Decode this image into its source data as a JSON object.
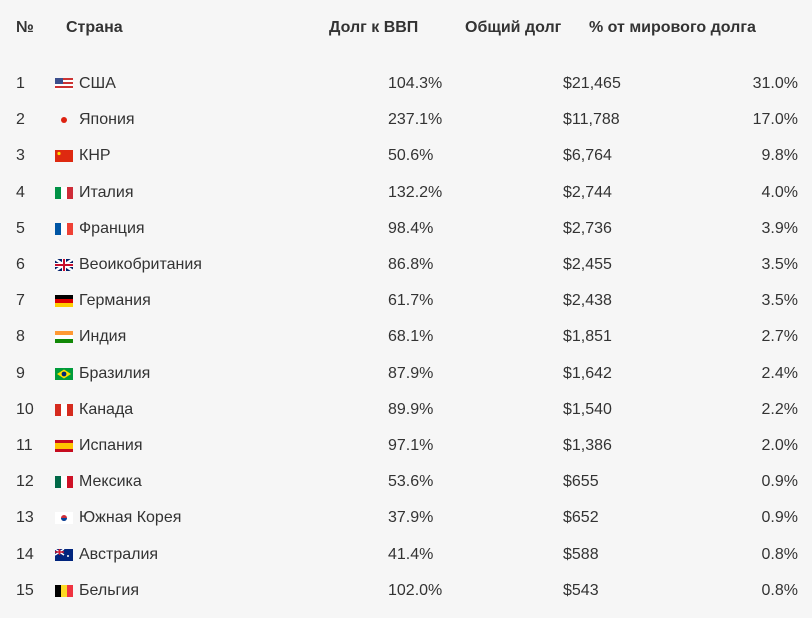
{
  "table": {
    "headers": [
      "№",
      "Страна",
      "Долг к ВВП",
      "Общий долг",
      "% от мирового долга"
    ],
    "rows": [
      [
        "1",
        "США",
        "104.3%",
        "$21,465",
        "31.0%"
      ],
      [
        "2",
        "Япония",
        "237.1%",
        "$11,788",
        "17.0%"
      ],
      [
        "3",
        "КНР",
        "50.6%",
        "$6,764",
        "9.8%"
      ],
      [
        "4",
        "Италия",
        "132.2%",
        "$2,744",
        "4.0%"
      ],
      [
        "5",
        "Франция",
        "98.4%",
        "$2,736",
        "3.9%"
      ],
      [
        "6",
        "Веоикобритания",
        "86.8%",
        "$2,455",
        "3.5%"
      ],
      [
        "7",
        "Германия",
        "61.7%",
        "$2,438",
        "3.5%"
      ],
      [
        "8",
        "Индия",
        "68.1%",
        "$1,851",
        "2.7%"
      ],
      [
        "9",
        "Бразилия",
        "87.9%",
        "$1,642",
        "2.4%"
      ],
      [
        "10",
        "Канада",
        "89.9%",
        "$1,540",
        "2.2%"
      ],
      [
        "11",
        "Испания",
        "97.1%",
        "$1,386",
        "2.0%"
      ],
      [
        "12",
        "Мексика",
        "53.6%",
        "$655",
        "0.9%"
      ],
      [
        "13",
        "Южная Корея",
        "37.9%",
        "$652",
        "0.9%"
      ],
      [
        "14",
        "Австралия",
        "41.4%",
        "$588",
        "0.8%"
      ],
      [
        "15",
        "Бельгия",
        "102.0%",
        "$543",
        "0.8%"
      ]
    ]
  }
}
